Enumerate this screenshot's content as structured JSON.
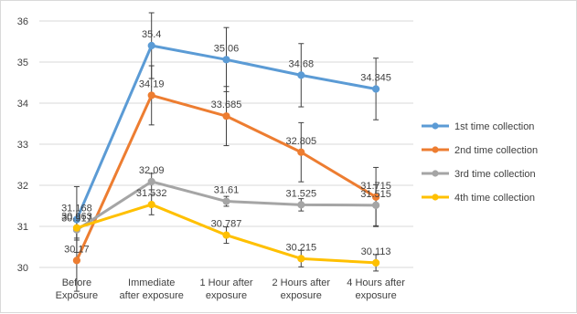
{
  "chart_data": {
    "type": "line",
    "categories": [
      [
        "Before",
        "Exposure"
      ],
      [
        "Immediate",
        "after exposure"
      ],
      [
        "1 Hour after",
        "exposure"
      ],
      [
        "2 Hours after",
        "exposure"
      ],
      [
        "4 Hours after",
        "exposure"
      ]
    ],
    "ylim": [
      30,
      36
    ],
    "yticks": [
      30,
      31,
      32,
      33,
      34,
      35,
      36
    ],
    "grid": "horizontal",
    "legend": "right",
    "series": [
      {
        "name": "1st time collection",
        "color": "#5b9bd5",
        "values": [
          31.168,
          35.4,
          35.06,
          34.68,
          34.345
        ],
        "labels": [
          "31.168",
          "35.4",
          "35.06",
          "34.68",
          "34.345"
        ],
        "error": [
          0.8,
          0.8,
          0.78,
          0.77,
          0.75
        ]
      },
      {
        "name": "2nd time collection",
        "color": "#ed7d31",
        "values": [
          30.17,
          34.19,
          33.685,
          32.805,
          31.715
        ],
        "labels": [
          "30.17",
          "34.19",
          "33.685",
          "32.805",
          "31.715"
        ],
        "error": [
          0.75,
          0.72,
          0.72,
          0.72,
          0.72
        ]
      },
      {
        "name": "3rd time collection",
        "color": "#a5a5a5",
        "values": [
          30.917,
          32.09,
          31.61,
          31.525,
          31.515
        ],
        "labels": [
          "30.917",
          "32.09",
          "31.61",
          "31.525",
          "31.515"
        ],
        "error": [
          0.25,
          0.2,
          0.12,
          0.15,
          0.5
        ]
      },
      {
        "name": "4th time collection",
        "color": "#ffc000",
        "values": [
          30.963,
          31.532,
          30.787,
          30.215,
          30.113
        ],
        "labels": [
          "30.963",
          "31.532",
          "30.787",
          "30.215",
          "30.113"
        ],
        "error": [
          0.25,
          0.25,
          0.2,
          0.2,
          0.2
        ]
      }
    ]
  }
}
